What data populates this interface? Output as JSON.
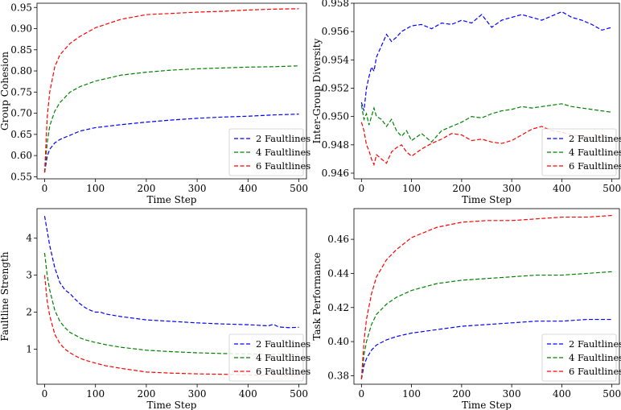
{
  "chart_data": [
    {
      "type": "line",
      "xlabel": "Time Step",
      "ylabel": "Group Cohesion",
      "xlim": [
        -15,
        515
      ],
      "ylim": [
        0.545,
        0.96
      ],
      "xticks": [
        0,
        100,
        200,
        300,
        400,
        500
      ],
      "yticks": [
        0.55,
        0.6,
        0.65,
        0.7,
        0.75,
        0.8,
        0.85,
        0.9,
        0.95
      ],
      "ytick_labels": [
        "0.55",
        "0.60",
        "0.65",
        "0.70",
        "0.75",
        "0.80",
        "0.85",
        "0.90",
        "0.95"
      ],
      "legend_position": "lower-right",
      "series": [
        {
          "name": "2 Faultlines",
          "color": "#0000ff",
          "x": [
            0,
            5,
            10,
            20,
            30,
            50,
            70,
            100,
            150,
            200,
            250,
            300,
            350,
            400,
            450,
            500
          ],
          "y": [
            0.56,
            0.598,
            0.615,
            0.63,
            0.638,
            0.648,
            0.658,
            0.666,
            0.673,
            0.679,
            0.684,
            0.688,
            0.691,
            0.693,
            0.696,
            0.698
          ]
        },
        {
          "name": "4 Faultlines",
          "color": "#008000",
          "x": [
            0,
            5,
            10,
            20,
            30,
            50,
            70,
            100,
            150,
            200,
            250,
            300,
            350,
            400,
            450,
            500
          ],
          "y": [
            0.56,
            0.63,
            0.67,
            0.705,
            0.725,
            0.75,
            0.763,
            0.776,
            0.79,
            0.797,
            0.802,
            0.805,
            0.807,
            0.809,
            0.81,
            0.812
          ]
        },
        {
          "name": "6 Faultlines",
          "color": "#ff0000",
          "x": [
            0,
            5,
            10,
            20,
            30,
            50,
            70,
            100,
            150,
            200,
            250,
            300,
            350,
            400,
            450,
            500
          ],
          "y": [
            0.56,
            0.69,
            0.75,
            0.81,
            0.838,
            0.865,
            0.882,
            0.902,
            0.922,
            0.933,
            0.936,
            0.939,
            0.941,
            0.944,
            0.946,
            0.947
          ]
        }
      ]
    },
    {
      "type": "line",
      "xlabel": "Time Step",
      "ylabel": "Inter-Group Diversity",
      "xlim": [
        -15,
        515
      ],
      "ylim": [
        0.9456,
        0.958
      ],
      "xticks": [
        0,
        100,
        200,
        300,
        400,
        500
      ],
      "yticks": [
        0.946,
        0.948,
        0.95,
        0.952,
        0.954,
        0.956,
        0.958
      ],
      "ytick_labels": [
        "0.946",
        "0.948",
        "0.950",
        "0.952",
        "0.954",
        "0.956",
        "0.958"
      ],
      "legend_position": "lower-right",
      "series": [
        {
          "name": "2 Faultlines",
          "color": "#0000ff",
          "x": [
            0,
            5,
            10,
            15,
            20,
            25,
            30,
            40,
            50,
            60,
            70,
            80,
            90,
            100,
            120,
            140,
            160,
            180,
            200,
            220,
            240,
            260,
            280,
            300,
            320,
            340,
            360,
            380,
            400,
            420,
            440,
            460,
            480,
            500
          ],
          "y": [
            0.951,
            0.9504,
            0.952,
            0.9528,
            0.9535,
            0.9532,
            0.9542,
            0.955,
            0.9558,
            0.9553,
            0.9556,
            0.956,
            0.9562,
            0.9564,
            0.9565,
            0.9562,
            0.9566,
            0.9565,
            0.9568,
            0.9566,
            0.9572,
            0.9563,
            0.9568,
            0.957,
            0.9572,
            0.957,
            0.9568,
            0.9571,
            0.9574,
            0.957,
            0.9568,
            0.9565,
            0.9561,
            0.9563
          ]
        },
        {
          "name": "4 Faultlines",
          "color": "#008000",
          "x": [
            0,
            5,
            10,
            15,
            20,
            25,
            30,
            40,
            50,
            60,
            70,
            80,
            90,
            100,
            120,
            140,
            160,
            180,
            200,
            220,
            240,
            260,
            280,
            300,
            320,
            340,
            360,
            380,
            400,
            420,
            440,
            460,
            480,
            500
          ],
          "y": [
            0.9508,
            0.9498,
            0.9502,
            0.9494,
            0.95,
            0.9506,
            0.95,
            0.9498,
            0.9493,
            0.9498,
            0.949,
            0.9486,
            0.949,
            0.9483,
            0.9488,
            0.9482,
            0.949,
            0.9493,
            0.9496,
            0.95,
            0.9499,
            0.9502,
            0.9504,
            0.9505,
            0.9507,
            0.9506,
            0.9507,
            0.9508,
            0.9509,
            0.9507,
            0.9506,
            0.9505,
            0.9504,
            0.9503
          ]
        },
        {
          "name": "6 Faultlines",
          "color": "#ff0000",
          "x": [
            0,
            5,
            10,
            15,
            20,
            25,
            30,
            40,
            50,
            60,
            70,
            80,
            90,
            100,
            120,
            140,
            160,
            180,
            200,
            220,
            240,
            260,
            280,
            300,
            320,
            340,
            360,
            380,
            400,
            420,
            440,
            460,
            480,
            500
          ],
          "y": [
            0.9496,
            0.949,
            0.948,
            0.9476,
            0.947,
            0.9466,
            0.9473,
            0.947,
            0.9467,
            0.9475,
            0.9478,
            0.948,
            0.9475,
            0.9472,
            0.9477,
            0.9481,
            0.9484,
            0.9488,
            0.9487,
            0.9483,
            0.9484,
            0.9482,
            0.9481,
            0.9483,
            0.9487,
            0.9491,
            0.9493,
            0.949,
            0.9489,
            0.9487,
            0.9486,
            0.9485,
            0.9486,
            0.9485
          ]
        }
      ]
    },
    {
      "type": "line",
      "xlabel": "Time Step",
      "ylabel": "Faultline Strength",
      "xlim": [
        -15,
        515
      ],
      "ylim": [
        0.05,
        4.8
      ],
      "xticks": [
        0,
        100,
        200,
        300,
        400,
        500
      ],
      "yticks": [
        1,
        2,
        3,
        4
      ],
      "ytick_labels": [
        "1",
        "2",
        "3",
        "4"
      ],
      "legend_position": "lower-right",
      "series": [
        {
          "name": "2 Faultlines",
          "color": "#0000ff",
          "x": [
            0,
            5,
            10,
            20,
            30,
            40,
            50,
            60,
            70,
            80,
            90,
            100,
            110,
            120,
            150,
            200,
            250,
            300,
            350,
            400,
            440,
            450,
            460,
            480,
            500
          ],
          "y": [
            4.6,
            4.2,
            3.8,
            3.2,
            2.8,
            2.6,
            2.5,
            2.35,
            2.22,
            2.12,
            2.05,
            2.0,
            2.0,
            1.95,
            1.88,
            1.79,
            1.75,
            1.71,
            1.68,
            1.66,
            1.63,
            1.67,
            1.6,
            1.58,
            1.59
          ]
        },
        {
          "name": "4 Faultlines",
          "color": "#008000",
          "x": [
            0,
            5,
            10,
            20,
            30,
            40,
            50,
            60,
            70,
            80,
            100,
            120,
            150,
            200,
            250,
            300,
            350,
            400,
            450,
            500
          ],
          "y": [
            3.6,
            3.0,
            2.6,
            2.05,
            1.75,
            1.58,
            1.45,
            1.38,
            1.3,
            1.25,
            1.18,
            1.12,
            1.05,
            0.97,
            0.93,
            0.9,
            0.88,
            0.87,
            0.86,
            0.86
          ]
        },
        {
          "name": "6 Faultlines",
          "color": "#ff0000",
          "x": [
            0,
            5,
            10,
            20,
            30,
            40,
            50,
            60,
            70,
            80,
            100,
            120,
            150,
            200,
            250,
            300,
            350,
            400,
            450,
            500
          ],
          "y": [
            3.0,
            2.3,
            1.9,
            1.4,
            1.15,
            1.0,
            0.9,
            0.82,
            0.75,
            0.7,
            0.62,
            0.55,
            0.48,
            0.38,
            0.35,
            0.33,
            0.32,
            0.3,
            0.29,
            0.28
          ]
        }
      ]
    },
    {
      "type": "line",
      "xlabel": "Time Step",
      "ylabel": "Task Performance",
      "xlim": [
        -15,
        515
      ],
      "ylim": [
        0.375,
        0.478
      ],
      "xticks": [
        0,
        100,
        200,
        300,
        400,
        500
      ],
      "yticks": [
        0.38,
        0.4,
        0.42,
        0.44,
        0.46
      ],
      "ytick_labels": [
        "0.38",
        "0.40",
        "0.42",
        "0.44",
        "0.46"
      ],
      "legend_position": "lower-right",
      "series": [
        {
          "name": "2 Faultlines",
          "color": "#0000ff",
          "x": [
            0,
            5,
            10,
            20,
            30,
            50,
            70,
            100,
            150,
            200,
            250,
            300,
            350,
            400,
            450,
            500
          ],
          "y": [
            0.378,
            0.386,
            0.39,
            0.395,
            0.398,
            0.401,
            0.403,
            0.405,
            0.407,
            0.409,
            0.41,
            0.411,
            0.412,
            0.412,
            0.413,
            0.413
          ]
        },
        {
          "name": "4 Faultlines",
          "color": "#008000",
          "x": [
            0,
            5,
            10,
            20,
            30,
            50,
            70,
            100,
            150,
            200,
            250,
            300,
            350,
            400,
            450,
            500
          ],
          "y": [
            0.378,
            0.392,
            0.4,
            0.41,
            0.416,
            0.422,
            0.426,
            0.43,
            0.434,
            0.436,
            0.437,
            0.438,
            0.439,
            0.439,
            0.44,
            0.441
          ]
        },
        {
          "name": "6 Faultlines",
          "color": "#ff0000",
          "x": [
            0,
            5,
            10,
            20,
            30,
            50,
            70,
            100,
            150,
            200,
            250,
            300,
            350,
            400,
            450,
            500
          ],
          "y": [
            0.378,
            0.4,
            0.413,
            0.428,
            0.438,
            0.448,
            0.454,
            0.461,
            0.467,
            0.47,
            0.471,
            0.471,
            0.472,
            0.473,
            0.473,
            0.474
          ]
        }
      ]
    }
  ]
}
